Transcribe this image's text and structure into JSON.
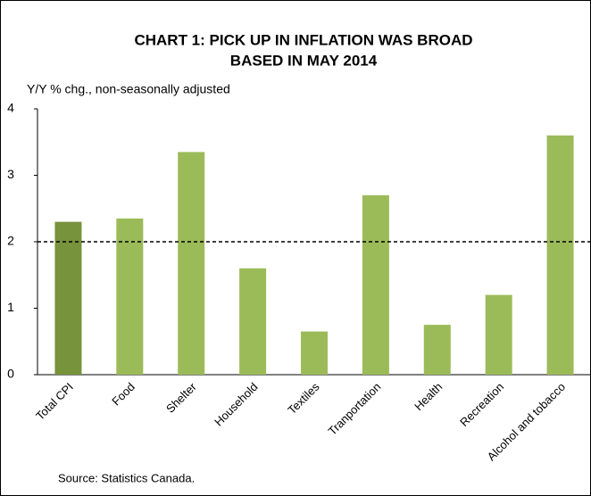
{
  "chart_data": {
    "type": "bar",
    "title": [
      "CHART 1: PICK UP IN INFLATION WAS BROAD",
      "BASED IN MAY 2014"
    ],
    "y_label": "Y/Y % chg., non-seasonally adjusted",
    "source": "Source: Statistics Canada.",
    "categories": [
      "Total CPI",
      "Food",
      "Shelter",
      "Household",
      "Textiles",
      "Tranportation",
      "Health",
      "Recreation",
      "Alcohol and tobacco"
    ],
    "values": [
      2.3,
      2.35,
      3.35,
      1.6,
      0.65,
      2.7,
      0.75,
      1.2,
      3.6
    ],
    "colors": [
      "#77933c",
      "#9bbb59",
      "#9bbb59",
      "#9bbb59",
      "#9bbb59",
      "#9bbb59",
      "#9bbb59",
      "#9bbb59",
      "#9bbb59"
    ],
    "reference_line": 2,
    "ylim": [
      0,
      4
    ],
    "yticks": [
      0,
      1,
      2,
      3,
      4
    ],
    "grid": false
  }
}
